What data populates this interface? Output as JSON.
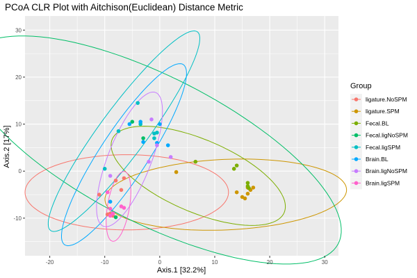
{
  "chart_data": {
    "type": "scatter",
    "title": "PCoA CLR Plot with Aitchison(Euclidean) Distance Metric",
    "xlabel": "Axis.1   [32.2%]",
    "ylabel": "Axis.2   [17%]",
    "xlim": [
      -24.5,
      32.5
    ],
    "ylim": [
      -18,
      33
    ],
    "xticks": [
      -20,
      -10,
      0,
      10,
      20,
      30
    ],
    "yticks": [
      -10,
      0,
      10,
      20,
      30
    ],
    "grid": true,
    "panel_background": "#ebebeb",
    "legend": {
      "title": "Group",
      "placement": "right"
    },
    "series": [
      {
        "name": "ligature.NoSPM",
        "color": "#F8766D",
        "points": [
          [
            -11,
            -5
          ],
          [
            -8,
            -2
          ],
          [
            -6.5,
            -1.5
          ],
          [
            -9,
            -9
          ],
          [
            -8.5,
            -9.5
          ],
          [
            -9.5,
            -9.2
          ],
          [
            -7,
            -4
          ]
        ],
        "ellipse": {
          "center": [
            -6,
            -4.5
          ],
          "semi_major": 18.5,
          "semi_minor": 8,
          "angle_deg": 0
        }
      },
      {
        "name": "ligature.SPM",
        "color": "#CD9600",
        "points": [
          [
            3,
            -0.2
          ],
          [
            14,
            -4.5
          ],
          [
            15,
            -5.5
          ],
          [
            15.5,
            -5.8
          ],
          [
            16,
            -4.8
          ],
          [
            16.5,
            -4
          ],
          [
            17,
            -3.5
          ],
          [
            16,
            -3.5
          ]
        ],
        "ellipse": {
          "center": [
            12,
            -5
          ],
          "semi_major": 22,
          "semi_minor": 7.5,
          "angle_deg": 3
        }
      },
      {
        "name": "Fecal.BL",
        "color": "#7CAE00",
        "points": [
          [
            6.5,
            2
          ],
          [
            13.5,
            0.5
          ],
          [
            14,
            1.2
          ],
          [
            16,
            -2.5
          ],
          [
            16,
            -3.2
          ],
          [
            16.2,
            -3.6
          ]
        ],
        "ellipse": {
          "center": [
            7,
            -1
          ],
          "semi_major": 17.5,
          "semi_minor": 7.5,
          "angle_deg": -28
        }
      },
      {
        "name": "Fecal.ligNoSPM",
        "color": "#00BE67",
        "points": [
          [
            -8,
            -9.8
          ],
          [
            -3,
            7
          ],
          [
            -5,
            10.5
          ]
        ],
        "ellipse": {
          "center": [
            -1,
            4.5
          ],
          "semi_major": 39,
          "semi_minor": 15,
          "angle_deg": -32
        }
      },
      {
        "name": "Fecal.ligSPM",
        "color": "#00BFC4",
        "points": [
          [
            -10,
            0.5
          ],
          [
            -7.5,
            8.5
          ],
          [
            -4,
            14.5
          ],
          [
            -3.5,
            10
          ],
          [
            -1,
            7
          ],
          [
            -1,
            8
          ],
          [
            -0.5,
            8.2
          ]
        ],
        "ellipse": {
          "center": [
            -6.5,
            8.5
          ],
          "semi_major": 25,
          "semi_minor": 4.5,
          "angle_deg": 58
        }
      },
      {
        "name": "Brain.BL",
        "color": "#00A9FF",
        "points": [
          [
            -9,
            -6.5
          ],
          [
            -3,
            6.2
          ],
          [
            -5.5,
            10
          ],
          [
            -3.5,
            10.5
          ],
          [
            0,
            10
          ],
          [
            1.5,
            5.5
          ],
          [
            -0.5,
            6
          ]
        ],
        "ellipse": {
          "center": [
            -6.5,
            3.5
          ],
          "semi_major": 22,
          "semi_minor": 4.5,
          "angle_deg": 61
        }
      },
      {
        "name": "Brain.ligNoSPM",
        "color": "#C77CFF",
        "points": [
          [
            -9,
            -1
          ],
          [
            -2,
            2
          ],
          [
            -1.5,
            11
          ],
          [
            2,
            3
          ],
          [
            -0.5,
            5.5
          ]
        ],
        "ellipse": {
          "center": [
            -5.5,
            2.5
          ],
          "semi_major": 15,
          "semi_minor": 4,
          "angle_deg": 72
        }
      },
      {
        "name": "Brain.ligSPM",
        "color": "#FF61CC",
        "points": [
          [
            -9,
            -9.5
          ],
          [
            -9,
            -8
          ],
          [
            -8.5,
            -9
          ],
          [
            -7,
            -7.5
          ],
          [
            -9.5,
            -4.5
          ],
          [
            -6.5,
            -7.8
          ]
        ],
        "ellipse": {
          "center": [
            -7.5,
            -7.5
          ],
          "semi_major": 7.5,
          "semi_minor": 2,
          "angle_deg": 82
        }
      }
    ]
  }
}
